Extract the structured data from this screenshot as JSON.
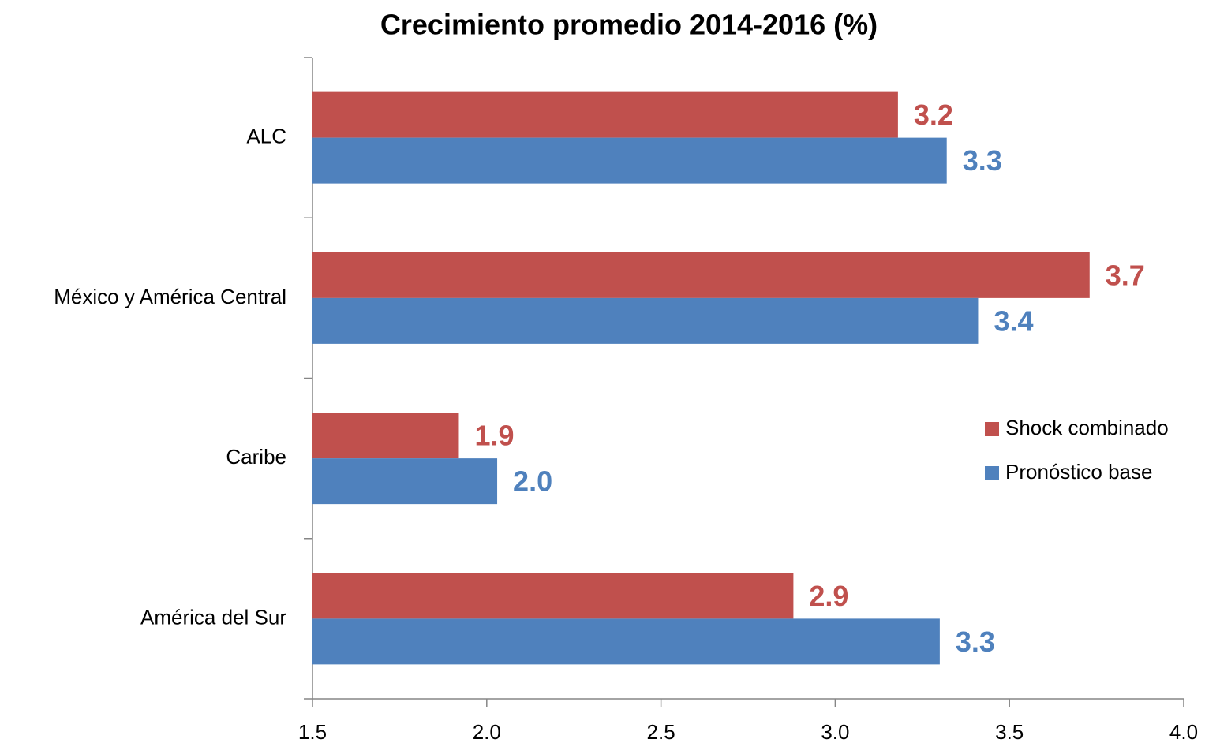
{
  "chart_data": {
    "type": "hbar",
    "title": "Crecimiento promedio 2014-2016 (%)",
    "categories": [
      "ALC",
      "México y América Central",
      "Caribe",
      "América del Sur"
    ],
    "series": [
      {
        "name": "Shock combinado",
        "color": "#c0504d",
        "values": [
          3.18,
          3.73,
          1.92,
          2.88
        ],
        "value_labels": [
          "3.2",
          "3.7",
          "1.9",
          "2.9"
        ]
      },
      {
        "name": "Pronóstico base",
        "color": "#4f81bd",
        "values": [
          3.32,
          3.41,
          2.03,
          3.3
        ],
        "value_labels": [
          "3.3",
          "3.4",
          "2.0",
          "3.3"
        ]
      }
    ],
    "xlim": [
      1.5,
      4.0
    ],
    "xticks": [
      1.5,
      {
        "value": 2.0,
        "label": "2.0"
      },
      2.5,
      {
        "value": 3.0,
        "label": "3.0"
      },
      3.5,
      {
        "value": 4.0,
        "label": "4.0"
      }
    ],
    "grid": false,
    "legend": "right"
  }
}
